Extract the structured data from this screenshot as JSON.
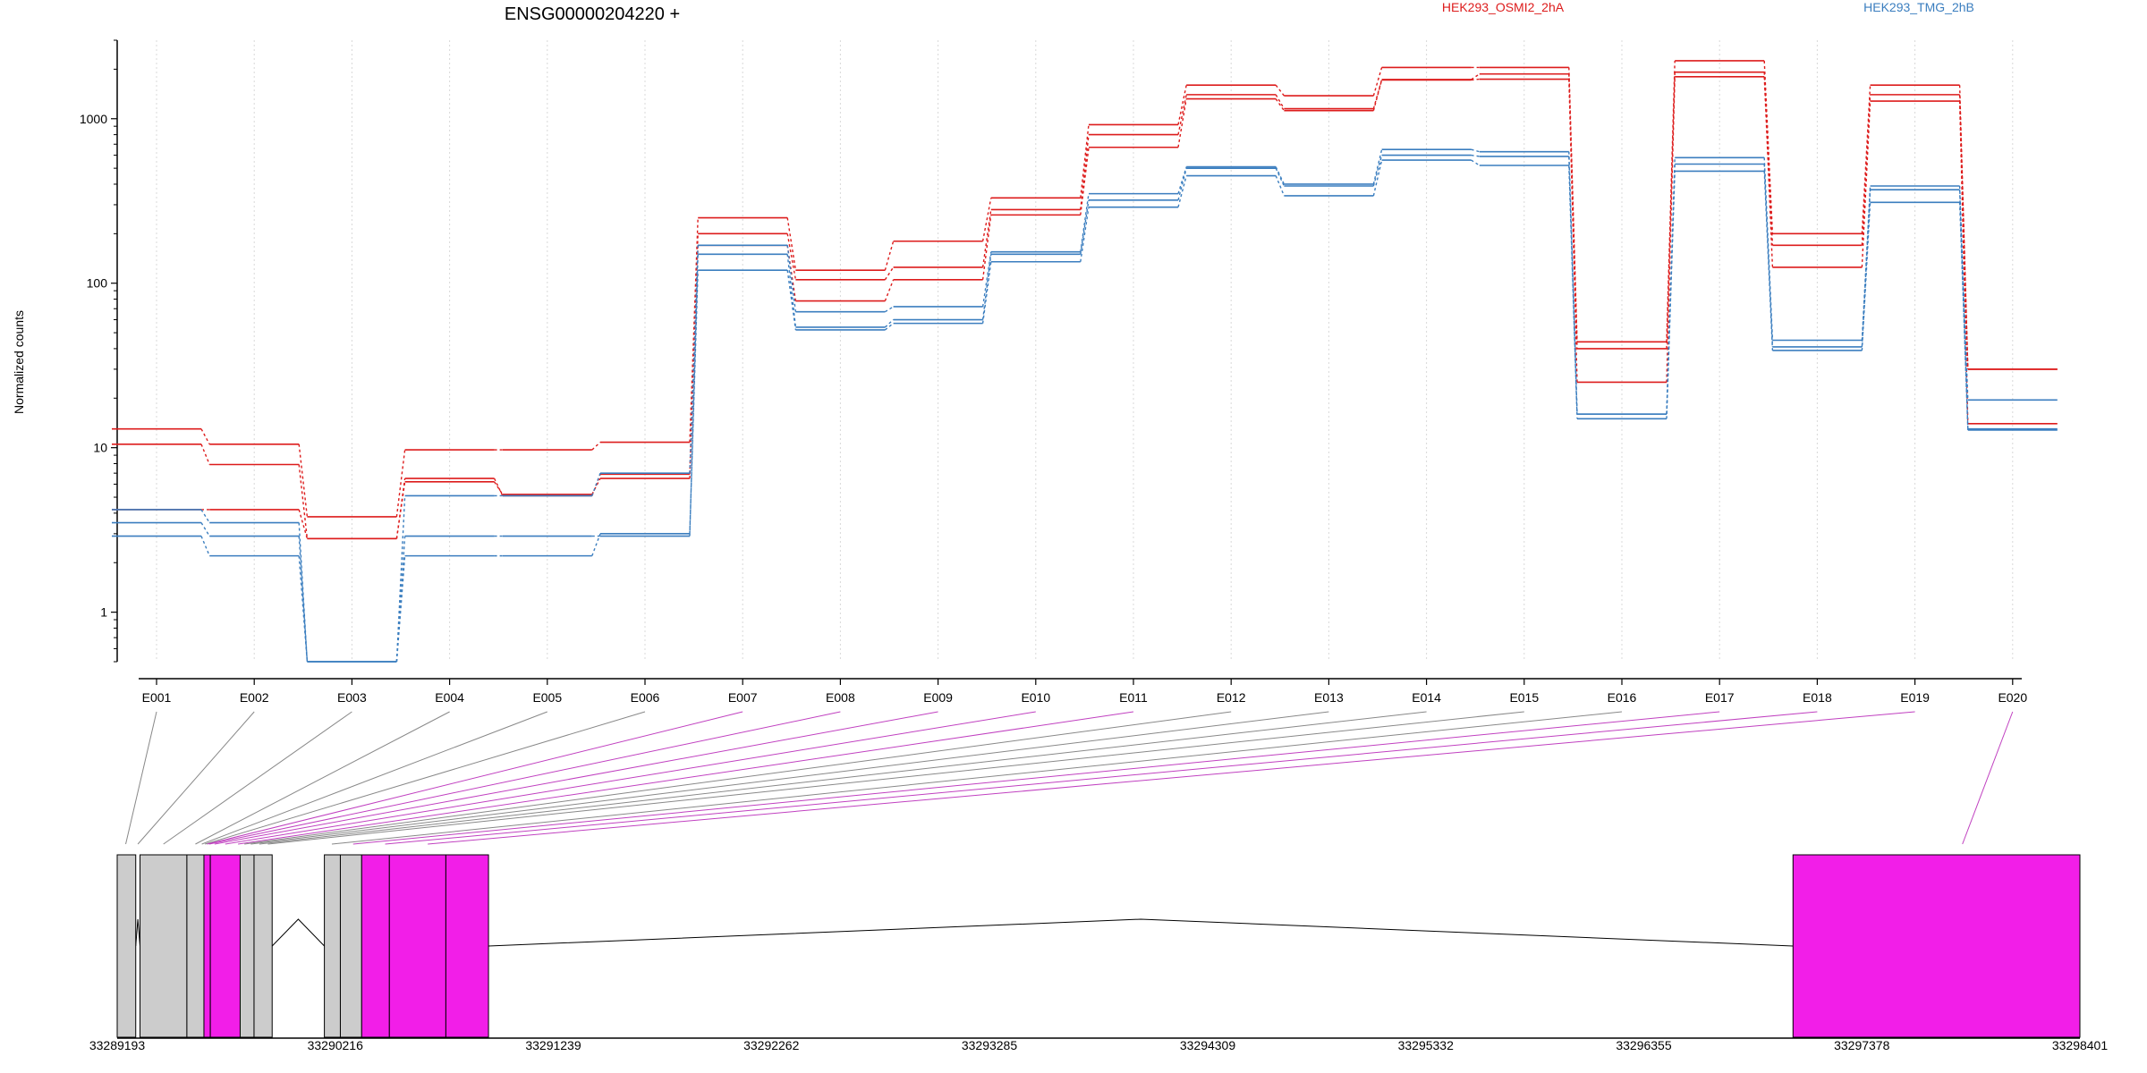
{
  "chart_data": {
    "type": "line",
    "title": "ENSG00000204220 +",
    "ylabel": "Normalized counts",
    "y_scale": "log",
    "ylim": [
      0.5,
      3000
    ],
    "y_ticks": [
      1,
      10,
      100,
      1000
    ],
    "y_tick_labels": [
      "1",
      "10",
      "100",
      "1000"
    ],
    "legend": [
      "HEK293_OSMI2_2hA",
      "HEK293_TMG_2hB"
    ],
    "legend_placement": "top",
    "categories": [
      "E001",
      "E002",
      "E003",
      "E004",
      "E005",
      "E006",
      "E007",
      "E008",
      "E009",
      "E010",
      "E011",
      "E012",
      "E013",
      "E014",
      "E015",
      "E016",
      "E017",
      "E018",
      "E019",
      "E020"
    ],
    "series": [
      {
        "name": "HEK293_OSMI2_2hA",
        "color": "#dd1c1c",
        "values": [
          13.0,
          10.5,
          3.8,
          9.7,
          9.7,
          10.8,
          250,
          120,
          180,
          330,
          920,
          1600,
          1380,
          2050,
          2050,
          44,
          2250,
          200,
          1600,
          30
        ]
      },
      {
        "color": "#dd1c1c",
        "values": [
          10.5,
          7.9,
          2.8,
          6.5,
          5.1,
          6.9,
          200,
          105,
          125,
          280,
          800,
          1400,
          1150,
          1730,
          1870,
          40,
          1920,
          170,
          1400,
          30
        ]
      },
      {
        "color": "#dd1c1c",
        "values": [
          4.2,
          4.2,
          2.8,
          6.2,
          5.2,
          6.5,
          170,
          78,
          105,
          260,
          670,
          1320,
          1120,
          1720,
          1740,
          25,
          1800,
          125,
          1280,
          14
        ]
      },
      {
        "name": "HEK293_TMG_2hB",
        "color": "#3b7ebf",
        "values": [
          4.2,
          3.5,
          0.5,
          5.1,
          5.1,
          7.0,
          170,
          67,
          72,
          155,
          350,
          510,
          400,
          650,
          630,
          16,
          580,
          45,
          390,
          19.5
        ]
      },
      {
        "color": "#3b7ebf",
        "values": [
          3.5,
          2.9,
          0.5,
          2.9,
          2.9,
          2.9,
          150,
          54,
          60,
          150,
          320,
          500,
          390,
          600,
          590,
          16,
          530,
          41,
          370,
          13
        ]
      },
      {
        "color": "#3b7ebf",
        "values": [
          2.9,
          2.2,
          0.5,
          2.2,
          2.2,
          3.0,
          120,
          52,
          57,
          135,
          290,
          450,
          340,
          560,
          520,
          15,
          480,
          39,
          310,
          12.8
        ]
      }
    ],
    "grid": "vertical-dotted",
    "gene_model": {
      "genomic_range": [
        33289193,
        33298401
      ],
      "axis_ticks": [
        33289193,
        33290216,
        33291239,
        33292262,
        33293285,
        33294309,
        33295332,
        33296355,
        33297378,
        33298401
      ],
      "exons": [
        {
          "start": 33289193,
          "end": 33289280,
          "color": "#cccccc"
        },
        {
          "start": 33289300,
          "end": 33289520,
          "color": "#cccccc"
        },
        {
          "start": 33289520,
          "end": 33289600,
          "color": "#cccccc"
        },
        {
          "start": 33289600,
          "end": 33289630,
          "color": "#f21ee8"
        },
        {
          "start": 33289630,
          "end": 33289770,
          "color": "#f21ee8"
        },
        {
          "start": 33289770,
          "end": 33289835,
          "color": "#cccccc"
        },
        {
          "start": 33289835,
          "end": 33289920,
          "color": "#cccccc"
        },
        {
          "start": 33290165,
          "end": 33290240,
          "color": "#cccccc"
        },
        {
          "start": 33290240,
          "end": 33290340,
          "color": "#cccccc"
        },
        {
          "start": 33290340,
          "end": 33290470,
          "color": "#f21ee8"
        },
        {
          "start": 33290470,
          "end": 33290735,
          "color": "#f21ee8"
        },
        {
          "start": 33290735,
          "end": 33290935,
          "color": "#f21ee8"
        },
        {
          "start": 33297055,
          "end": 33298401,
          "color": "#f21ee8"
        }
      ],
      "exon_links": [
        {
          "exon": "E001",
          "pos": 33289233,
          "color": "#888888"
        },
        {
          "exon": "E002",
          "pos": 33289290,
          "color": "#888888"
        },
        {
          "exon": "E003",
          "pos": 33289410,
          "color": "#888888"
        },
        {
          "exon": "E004",
          "pos": 33289560,
          "color": "#888888"
        },
        {
          "exon": "E005",
          "pos": 33289590,
          "color": "#888888"
        },
        {
          "exon": "E006",
          "pos": 33289605,
          "color": "#888888"
        },
        {
          "exon": "E007",
          "pos": 33289615,
          "color": "#c040c0"
        },
        {
          "exon": "E008",
          "pos": 33289625,
          "color": "#c040c0"
        },
        {
          "exon": "E009",
          "pos": 33289650,
          "color": "#c040c0"
        },
        {
          "exon": "E010",
          "pos": 33289700,
          "color": "#c040c0"
        },
        {
          "exon": "E011",
          "pos": 33289760,
          "color": "#c040c0"
        },
        {
          "exon": "E012",
          "pos": 33289790,
          "color": "#888888"
        },
        {
          "exon": "E013",
          "pos": 33289820,
          "color": "#888888"
        },
        {
          "exon": "E014",
          "pos": 33289860,
          "color": "#888888"
        },
        {
          "exon": "E015",
          "pos": 33289900,
          "color": "#888888"
        },
        {
          "exon": "E016",
          "pos": 33290200,
          "color": "#888888"
        },
        {
          "exon": "E017",
          "pos": 33290300,
          "color": "#c040c0"
        },
        {
          "exon": "E018",
          "pos": 33290450,
          "color": "#c040c0"
        },
        {
          "exon": "E019",
          "pos": 33290650,
          "color": "#c040c0"
        },
        {
          "exon": "E020",
          "pos": 33297850,
          "color": "#c040c0"
        }
      ]
    }
  }
}
